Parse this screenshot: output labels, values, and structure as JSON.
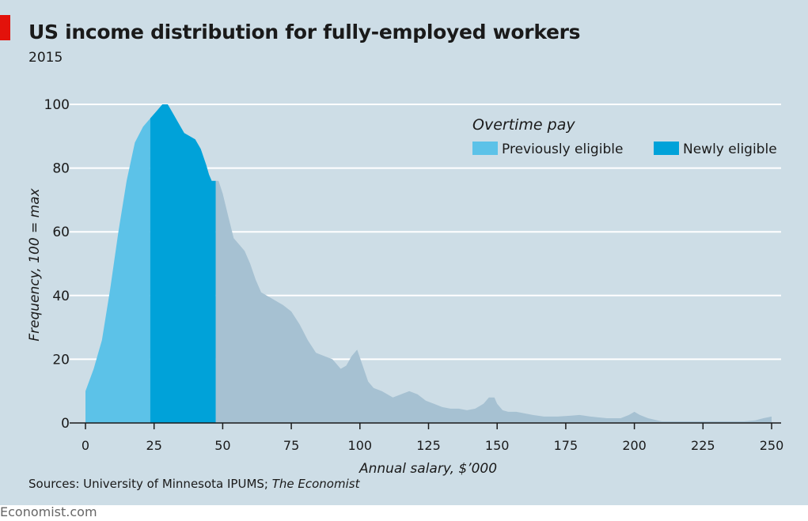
{
  "header": {
    "title": "US income distribution for fully-employed workers",
    "subtitle": "2015"
  },
  "source": {
    "prefix": "Sources: University of Minnesota IPUMS; ",
    "italic": "The Economist"
  },
  "footer": "Economist.com",
  "colors": {
    "background": "#cddde6",
    "previously": "#5cc2e8",
    "newly": "#00a2d9",
    "remainder": "#a6c1d2",
    "accent": "#e3120b"
  },
  "chart_data": {
    "type": "area",
    "title": "US income distribution for fully-employed workers",
    "subtitle": "2015",
    "xlabel": "Annual salary, $’000",
    "ylabel": "Frequency, 100 = max",
    "xlim": [
      0,
      250
    ],
    "ylim": [
      0,
      100
    ],
    "xticks": [
      0,
      25,
      50,
      75,
      100,
      125,
      150,
      175,
      200,
      225,
      250
    ],
    "yticks": [
      0,
      20,
      40,
      60,
      80,
      100
    ],
    "grid": true,
    "legend": {
      "title": "Overtime pay",
      "position": "top-right",
      "items": [
        {
          "label": "Previously eligible",
          "color": "#5cc2e8"
        },
        {
          "label": "Newly eligible",
          "color": "#00a2d9"
        }
      ]
    },
    "segments": [
      {
        "name": "Previously eligible",
        "x_range": [
          0,
          23.6
        ]
      },
      {
        "name": "Newly eligible",
        "x_range": [
          23.6,
          47.5
        ]
      }
    ],
    "x": [
      0,
      3,
      6,
      9,
      12,
      15,
      18,
      21,
      24,
      26,
      28,
      30,
      32,
      34,
      36,
      38,
      40,
      42,
      44,
      45,
      46,
      47.5,
      48.5,
      50,
      52,
      54,
      56,
      58,
      60,
      62,
      64,
      66,
      68,
      70,
      72,
      75,
      78,
      81,
      84,
      87,
      90,
      93,
      95,
      97,
      99,
      101,
      103,
      105,
      108,
      110,
      112,
      115,
      118,
      121,
      124,
      127,
      130,
      133,
      136,
      139,
      142,
      145,
      147,
      149,
      150,
      152,
      154,
      157,
      160,
      163,
      167,
      172,
      177,
      180,
      184,
      190,
      195,
      198,
      200,
      202,
      205,
      210,
      215,
      220,
      225,
      230,
      235,
      240,
      244,
      247,
      250
    ],
    "y": [
      10,
      17,
      26,
      42,
      60,
      76,
      88,
      93,
      96,
      98,
      100,
      100,
      97,
      94,
      91,
      90,
      89,
      86,
      81,
      78,
      76,
      76,
      76,
      72,
      65,
      58,
      56,
      54,
      50,
      45,
      41,
      40,
      39,
      38,
      37,
      35,
      31,
      26,
      22,
      21,
      20,
      17,
      18,
      21,
      23,
      18,
      13,
      11,
      10,
      9,
      8,
      9,
      10,
      9,
      7,
      6,
      5,
      4.5,
      4.5,
      4,
      4.5,
      6,
      8,
      8,
      6,
      4,
      3.5,
      3.5,
      3,
      2.5,
      2,
      2,
      2.3,
      2.5,
      2,
      1.5,
      1.5,
      2.5,
      3.5,
      2.5,
      1.5,
      0.5,
      0.5,
      0.5,
      0.5,
      0.5,
      0.5,
      0.5,
      0.8,
      1.5,
      2
    ]
  }
}
